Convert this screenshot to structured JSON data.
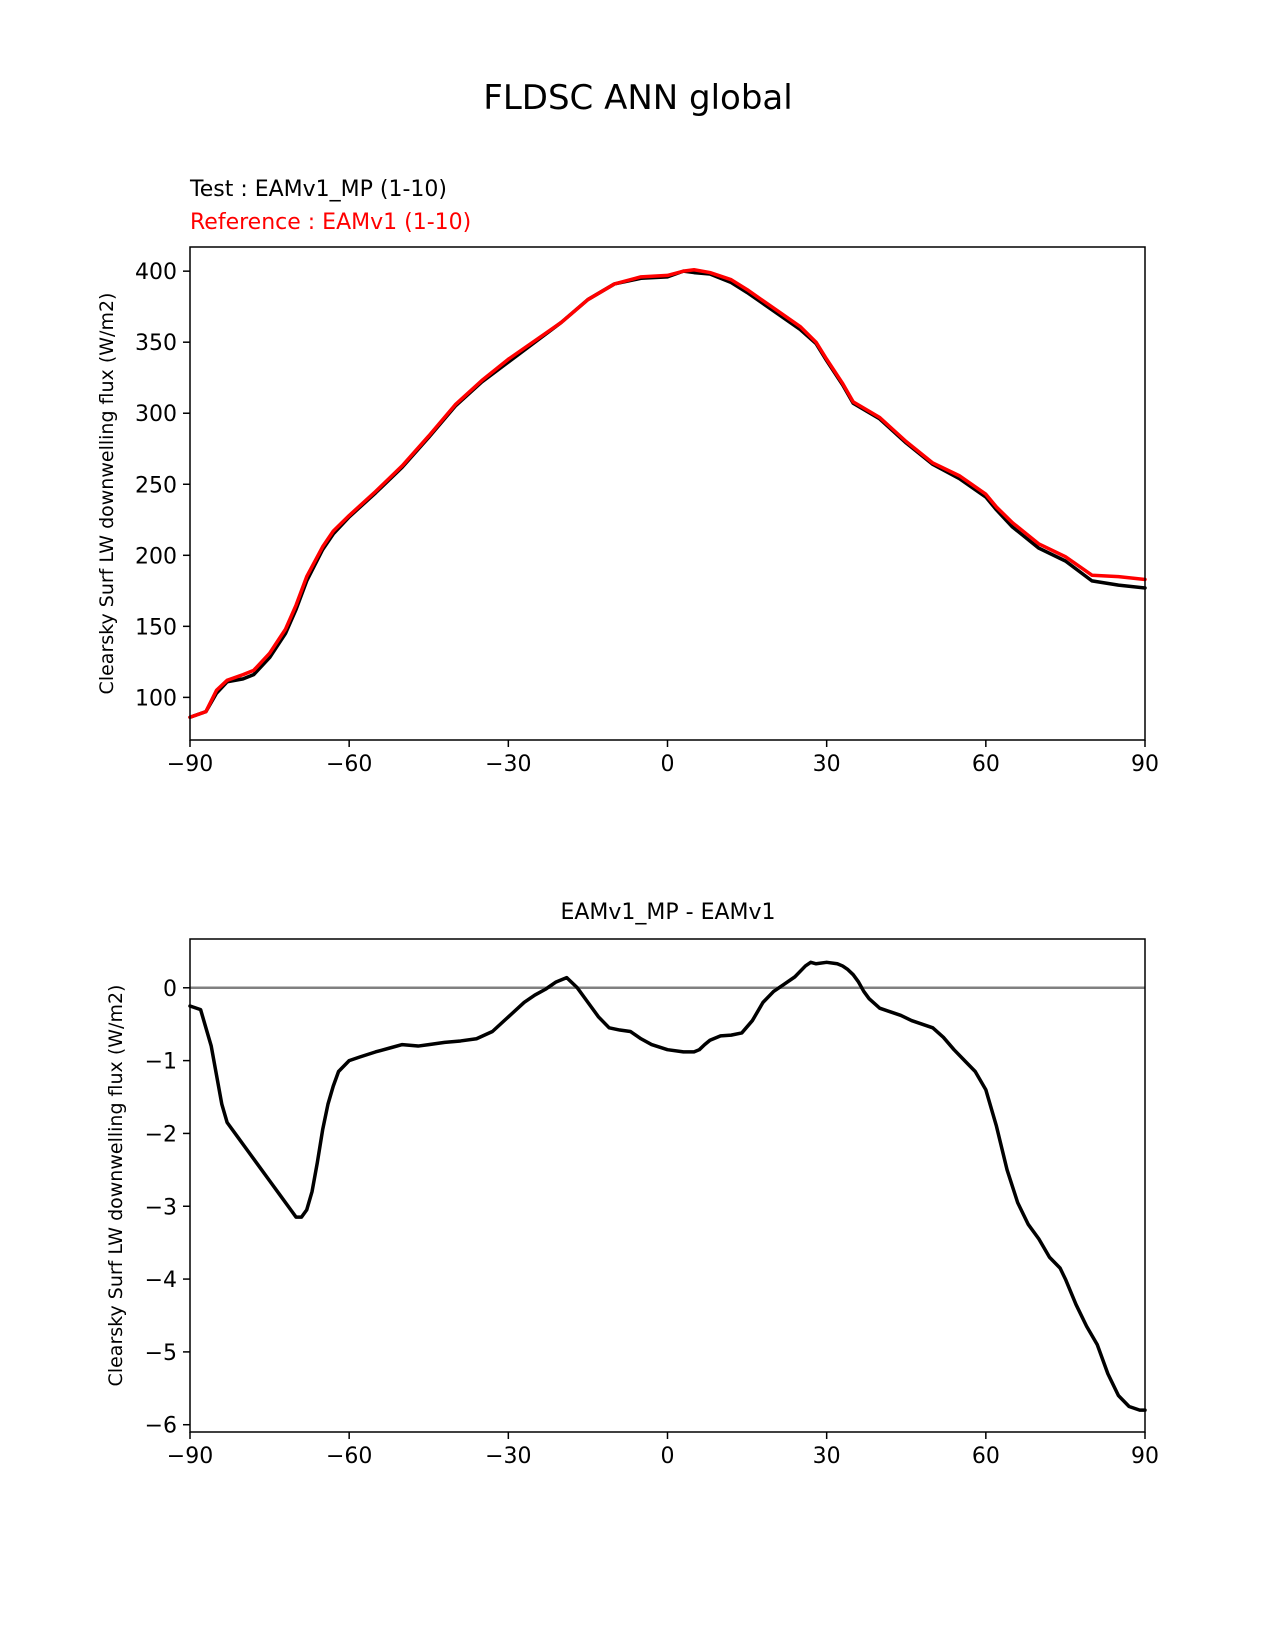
{
  "figure": {
    "title": "FLDSC ANN global"
  },
  "chart_data": [
    {
      "type": "line",
      "title": "",
      "legend_text": {
        "test": "Test : EAMv1_MP (1-10)",
        "reference": "Reference : EAMv1 (1-10)"
      },
      "xlabel": "",
      "ylabel": "Clearsky Surf LW downwelling flux (W/m2)",
      "xlim": [
        -90,
        90
      ],
      "ylim": [
        70,
        417
      ],
      "xticks": [
        -90,
        -60,
        -30,
        0,
        30,
        60,
        90
      ],
      "xtick_labels": [
        "−90",
        "−60",
        "−30",
        "0",
        "30",
        "60",
        "90"
      ],
      "yticks": [
        100,
        150,
        200,
        250,
        300,
        350,
        400
      ],
      "ytick_labels": [
        "100",
        "150",
        "200",
        "250",
        "300",
        "350",
        "400"
      ],
      "x": [
        -90,
        -87,
        -85,
        -83,
        -80,
        -78,
        -75,
        -72,
        -70,
        -68,
        -65,
        -63,
        -60,
        -55,
        -50,
        -45,
        -40,
        -35,
        -30,
        -25,
        -20,
        -15,
        -10,
        -5,
        0,
        3,
        5,
        8,
        12,
        15,
        20,
        25,
        28,
        30,
        33,
        35,
        40,
        45,
        50,
        55,
        60,
        62,
        65,
        70,
        75,
        80,
        85,
        90
      ],
      "series": [
        {
          "name": "EAMv1_MP (1-10)",
          "color": "#000000",
          "values": [
            86,
            90,
            103,
            111,
            113,
            116,
            128,
            145,
            162,
            182,
            204,
            215,
            227,
            244,
            262,
            283,
            305,
            322,
            336,
            350,
            364,
            380,
            391,
            395,
            396,
            400,
            399,
            398,
            392,
            385,
            372,
            359,
            349,
            337,
            320,
            307,
            296,
            279,
            264,
            254,
            241,
            232,
            220,
            205,
            196,
            182,
            179,
            177
          ]
        },
        {
          "name": "EAMv1 (1-10)",
          "color": "#ff0000",
          "values": [
            86,
            90,
            105,
            112,
            116,
            119,
            131,
            148,
            165,
            185,
            206,
            217,
            228,
            245,
            263,
            284,
            306,
            323,
            338,
            351,
            364,
            380,
            391,
            396,
            397,
            400,
            401,
            399,
            394,
            387,
            374,
            361,
            350,
            338,
            321,
            308,
            297,
            280,
            265,
            256,
            243,
            234,
            223,
            208,
            199,
            186,
            185,
            183
          ]
        }
      ]
    },
    {
      "type": "line",
      "title": "EAMv1_MP - EAMv1",
      "xlabel": "",
      "ylabel": "Clearsky Surf LW downwelling flux (W/m2)",
      "xlim": [
        -90,
        90
      ],
      "ylim": [
        -6.1,
        0.67
      ],
      "xticks": [
        -90,
        -60,
        -30,
        0,
        30,
        60,
        90
      ],
      "xtick_labels": [
        "−90",
        "−60",
        "−30",
        "0",
        "30",
        "60",
        "90"
      ],
      "yticks": [
        0,
        -1,
        -2,
        -3,
        -4,
        -5,
        -6
      ],
      "ytick_labels": [
        "0",
        "−1",
        "−2",
        "−3",
        "−4",
        "−5",
        "−6"
      ],
      "zero_line_color": "#808080",
      "x": [
        -90,
        -88,
        -87,
        -86,
        -85,
        -84,
        -83,
        -81,
        -79,
        -77,
        -75,
        -73,
        -71,
        -70,
        -69,
        -68,
        -67,
        -66,
        -65,
        -64,
        -63,
        -62,
        -60,
        -58,
        -55,
        -52,
        -50,
        -47,
        -45,
        -42,
        -39,
        -36,
        -33,
        -30,
        -27,
        -25,
        -23,
        -21,
        -19,
        -17,
        -15,
        -13,
        -11,
        -9,
        -7,
        -5,
        -3,
        0,
        3,
        5,
        6,
        7,
        8,
        10,
        12,
        14,
        16,
        18,
        20,
        22,
        24,
        26,
        27,
        28,
        30,
        32,
        33,
        34,
        35,
        36,
        37,
        38,
        40,
        42,
        44,
        46,
        48,
        50,
        52,
        54,
        56,
        58,
        60,
        62,
        64,
        66,
        68,
        70,
        72,
        74,
        75,
        77,
        79,
        81,
        83,
        85,
        87,
        89,
        90
      ],
      "values": [
        -0.25,
        -0.3,
        -0.55,
        -0.8,
        -1.2,
        -1.6,
        -1.85,
        -2.05,
        -2.25,
        -2.45,
        -2.65,
        -2.85,
        -3.05,
        -3.15,
        -3.15,
        -3.05,
        -2.8,
        -2.4,
        -1.95,
        -1.6,
        -1.35,
        -1.15,
        -1.0,
        -0.95,
        -0.88,
        -0.82,
        -0.78,
        -0.8,
        -0.78,
        -0.75,
        -0.73,
        -0.7,
        -0.6,
        -0.4,
        -0.2,
        -0.1,
        -0.02,
        0.08,
        0.14,
        0.0,
        -0.2,
        -0.4,
        -0.55,
        -0.58,
        -0.6,
        -0.7,
        -0.78,
        -0.85,
        -0.88,
        -0.88,
        -0.85,
        -0.78,
        -0.72,
        -0.66,
        -0.65,
        -0.62,
        -0.45,
        -0.2,
        -0.05,
        0.05,
        0.15,
        0.3,
        0.35,
        0.33,
        0.35,
        0.33,
        0.3,
        0.25,
        0.18,
        0.08,
        -0.05,
        -0.15,
        -0.28,
        -0.33,
        -0.38,
        -0.45,
        -0.5,
        -0.55,
        -0.68,
        -0.85,
        -1.0,
        -1.15,
        -1.4,
        -1.9,
        -2.5,
        -2.95,
        -3.25,
        -3.45,
        -3.7,
        -3.85,
        -4.0,
        -4.35,
        -4.65,
        -4.9,
        -5.3,
        -5.6,
        -5.75,
        -5.8,
        -5.8
      ]
    }
  ]
}
